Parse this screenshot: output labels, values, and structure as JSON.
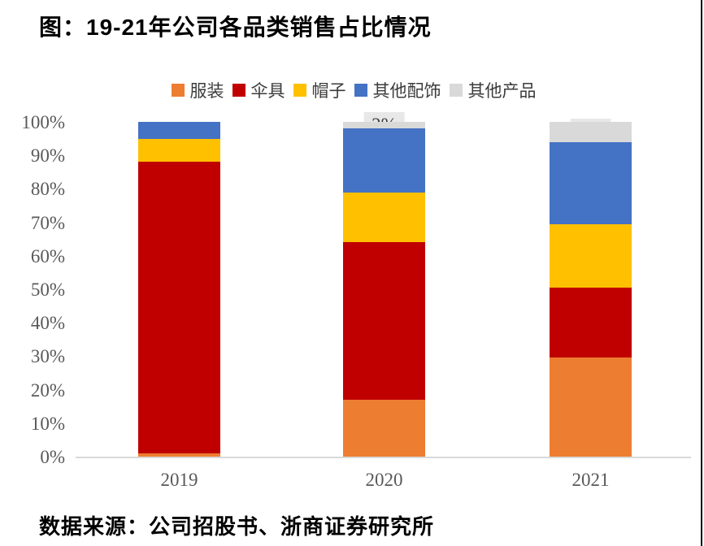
{
  "title": "图：19-21年公司各品类销售占比情况",
  "source": "数据来源：公司招股书、浙商证券研究所",
  "colors": {
    "fuzhuang_orange": "#ED7D31",
    "sanju_red": "#C00000",
    "maozi_yellow": "#FFC000",
    "qita_peishi_blue": "#4472C4",
    "qita_chanpin_gray": "#D9D9D9",
    "axis_line": "#D9D9D9",
    "tick_text": "#595959",
    "label_box_bg": "#E8E8E8",
    "label_text": "#3F3F3F"
  },
  "chart_data": {
    "type": "bar",
    "stacked": true,
    "percent_stacked": true,
    "title": "图：19-21年公司各品类销售占比情况",
    "categories": [
      "2019",
      "2020",
      "2021"
    ],
    "series": [
      {
        "name": "服装",
        "color": "#ED7D31",
        "values": [
          1,
          17,
          30
        ],
        "labels": [
          "",
          "17%",
          "30%"
        ]
      },
      {
        "name": "伞具",
        "color": "#C00000",
        "values": [
          87,
          47,
          21
        ],
        "labels": [
          "87%",
          "47%",
          "21%"
        ]
      },
      {
        "name": "帽子",
        "color": "#FFC000",
        "values": [
          7,
          15,
          19
        ],
        "labels": [
          "7%",
          "15%",
          "19%"
        ]
      },
      {
        "name": "其他配饰",
        "color": "#4472C4",
        "values": [
          5,
          19,
          25
        ],
        "labels": [
          "",
          "19%",
          "25%"
        ]
      },
      {
        "name": "其他产品",
        "color": "#D9D9D9",
        "values": [
          0,
          2,
          6
        ],
        "labels": [
          "",
          "2%",
          "6%"
        ]
      }
    ],
    "xlabel": "",
    "ylabel": "",
    "ylim": [
      0,
      100
    ],
    "yticks": [
      "0%",
      "10%",
      "20%",
      "30%",
      "40%",
      "50%",
      "60%",
      "70%",
      "80%",
      "90%",
      "100%"
    ],
    "legend_position": "top",
    "legend_entries": [
      "服装",
      "伞具",
      "帽子",
      "其他配饰",
      "其他产品"
    ],
    "gridlines": false
  }
}
